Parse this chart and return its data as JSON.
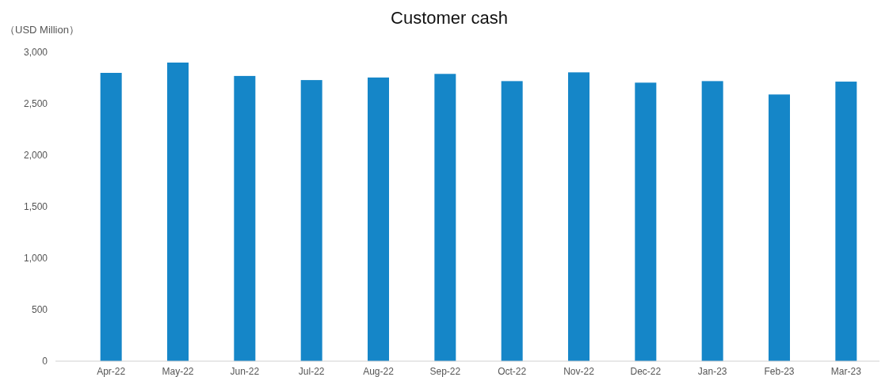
{
  "chart_data": {
    "type": "bar",
    "title": "Customer cash",
    "ylabel": "（USD Million）",
    "categories": [
      "Apr-22",
      "May-22",
      "Jun-22",
      "Jul-22",
      "Aug-22",
      "Sep-22",
      "Oct-22",
      "Nov-22",
      "Dec-22",
      "Jan-23",
      "Feb-23",
      "Mar-23"
    ],
    "values": [
      2800,
      2900,
      2770,
      2730,
      2755,
      2790,
      2720,
      2805,
      2705,
      2720,
      2590,
      2715
    ],
    "color": "#1586c8",
    "ylim": [
      0,
      3000
    ],
    "yticks": [
      {
        "value": 0,
        "label": "0"
      },
      {
        "value": 500,
        "label": "500"
      },
      {
        "value": 1000,
        "label": "1,000"
      },
      {
        "value": 1500,
        "label": "1,500"
      },
      {
        "value": 2000,
        "label": "2,000"
      },
      {
        "value": 2500,
        "label": "2,500"
      },
      {
        "value": 3000,
        "label": "3,000"
      }
    ],
    "grid": false
  }
}
